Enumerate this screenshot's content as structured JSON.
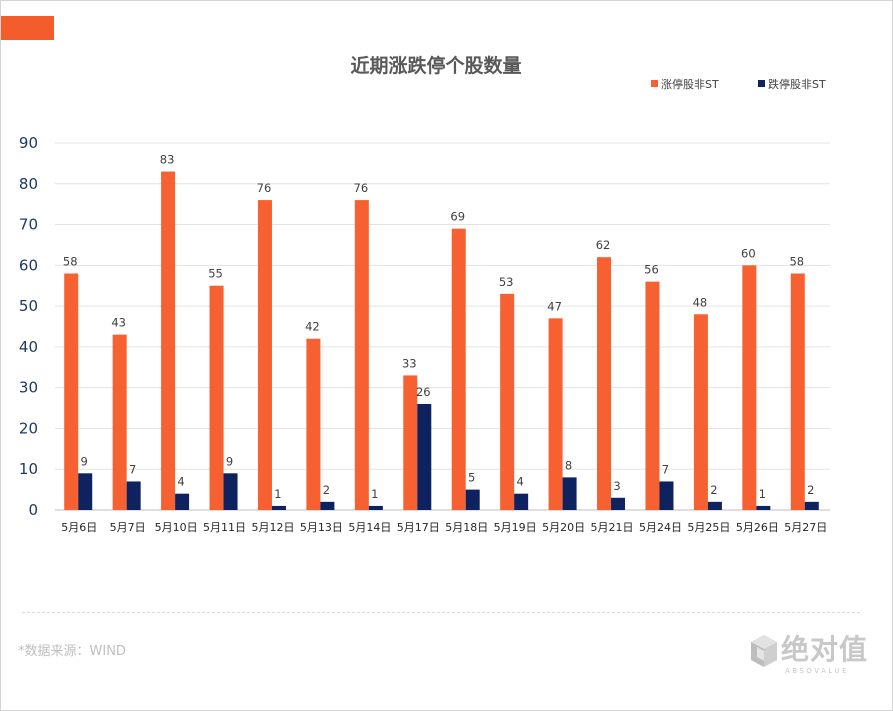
{
  "chart_data": {
    "type": "bar",
    "title": "近期涨跌停个股数量",
    "categories": [
      "5月6日",
      "5月7日",
      "5月10日",
      "5月11日",
      "5月12日",
      "5月13日",
      "5月14日",
      "5月17日",
      "5月18日",
      "5月19日",
      "5月20日",
      "5月21日",
      "5月24日",
      "5月25日",
      "5月26日",
      "5月27日"
    ],
    "series": [
      {
        "name": "涨停股非ST",
        "color": "#f76030",
        "values": [
          58,
          43,
          83,
          55,
          76,
          42,
          76,
          33,
          69,
          53,
          47,
          62,
          56,
          48,
          60,
          58
        ]
      },
      {
        "name": "跌停股非ST",
        "color": "#0f2260",
        "values": [
          9,
          7,
          4,
          9,
          1,
          2,
          1,
          26,
          5,
          4,
          8,
          3,
          7,
          2,
          1,
          2
        ]
      }
    ],
    "yticks": [
      0,
      10,
      20,
      30,
      40,
      50,
      60,
      70,
      80,
      90
    ],
    "ylim": [
      0,
      90
    ],
    "xlabel": "",
    "ylabel": "",
    "grid": true,
    "legend_position": "top-right"
  },
  "footer": {
    "source": "*数据来源：WIND"
  },
  "logo": {
    "cn": "绝对值",
    "en": "ABSOVALUE"
  },
  "colors": {
    "accent": "#f25d2b"
  }
}
